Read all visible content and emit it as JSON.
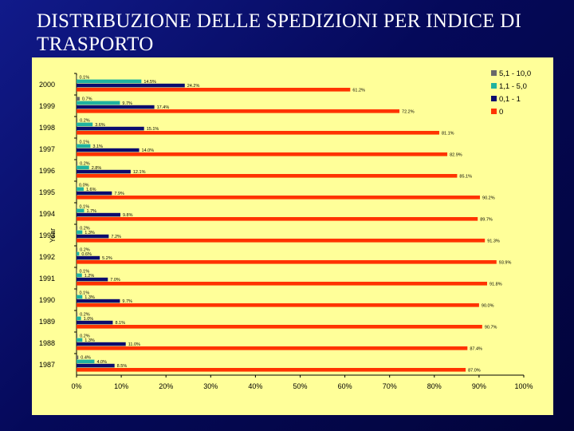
{
  "slide": {
    "title": "DISTRIBUZIONE DELLE SPEDIZIONI PER INDICE DI TRASPORTO"
  },
  "chart_data": {
    "type": "bar",
    "orientation": "horizontal",
    "title": "",
    "xlabel": "",
    "ylabel": "Year",
    "xlim": [
      0,
      100
    ],
    "x_ticks": [
      "0%",
      "10%",
      "20%",
      "30%",
      "40%",
      "50%",
      "60%",
      "70%",
      "80%",
      "90%",
      "100%"
    ],
    "categories": [
      "2000",
      "1999",
      "1998",
      "1997",
      "1996",
      "1995",
      "1994",
      "1993",
      "1992",
      "1991",
      "1990",
      "1989",
      "1988",
      "1987"
    ],
    "series": [
      {
        "name": "5,1 - 10,0",
        "color": "#696969",
        "values": [
          0.1,
          0.7,
          0.2,
          0.1,
          0.2,
          0.0,
          0.1,
          0.2,
          0.2,
          0.1,
          0.1,
          0.2,
          0.2,
          0.4
        ],
        "labels": [
          "0.1%",
          "0.7%",
          "0.2%",
          "0.1%",
          "0.2%",
          "0.0%",
          "0.1%",
          "0.2%",
          "0.2%",
          "0.1%",
          "0.1%",
          "0.2%",
          "0.2%",
          "0.4%"
        ]
      },
      {
        "name": "1,1 - 5,0",
        "color": "#20b2a0",
        "values": [
          14.5,
          9.7,
          3.6,
          3.1,
          2.8,
          1.6,
          1.7,
          1.3,
          0.6,
          1.2,
          1.3,
          1.0,
          1.3,
          4.0
        ],
        "labels": [
          "14.5%",
          "9.7%",
          "3.6%",
          "3.1%",
          "2.8%",
          "1.6%",
          "1.7%",
          "1.3%",
          "0.6%",
          "1.2%",
          "1.3%",
          "1.0%",
          "1.3%",
          "4.0%"
        ]
      },
      {
        "name": "0,1 - 1",
        "color": "#0c0c6e",
        "values": [
          24.2,
          17.4,
          15.1,
          14.0,
          12.1,
          7.9,
          9.8,
          7.2,
          5.2,
          7.0,
          9.7,
          8.1,
          11.0,
          8.5
        ],
        "labels": [
          "24.2%",
          "17.4%",
          "15.1%",
          "14.0%",
          "12.1%",
          "7.9%",
          "9.8%",
          "7.2%",
          "5.2%",
          "7.0%",
          "9.7%",
          "8.1%",
          "11.0%",
          "8.5%"
        ]
      },
      {
        "name": "0",
        "color": "#ff3300",
        "values": [
          61.2,
          72.2,
          81.1,
          82.9,
          85.1,
          90.2,
          89.7,
          91.3,
          93.9,
          91.8,
          90.0,
          90.7,
          87.4,
          87.0
        ],
        "labels": [
          "61.2%",
          "72.2%",
          "81.1%",
          "82.9%",
          "85.1%",
          "90.2%",
          "89.7%",
          "91.3%",
          "93.9%",
          "91.8%",
          "90.0%",
          "90.7%",
          "87.4%",
          "87.0%"
        ]
      }
    ],
    "legend_position": "top-right",
    "grid": false
  }
}
